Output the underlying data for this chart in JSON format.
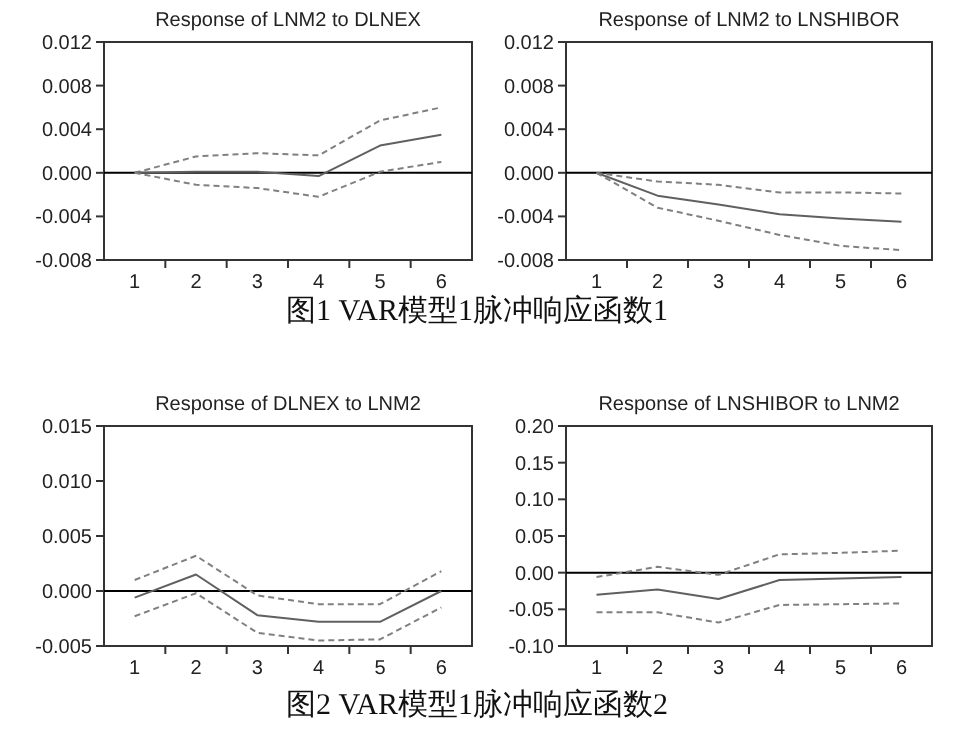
{
  "chart_data": [
    {
      "type": "line",
      "title": "Response of LNM2 to DLNEX",
      "categories": [
        "1",
        "2",
        "3",
        "4",
        "5",
        "6"
      ],
      "ylim": [
        -0.008,
        0.012
      ],
      "yticks": [
        -0.008,
        -0.004,
        {
          "value": 0,
          "label": "0.000"
        },
        0.004,
        0.008,
        0.012
      ],
      "ref_lines": [
        {
          "axis": "y",
          "value": 0,
          "color": "#000000"
        }
      ],
      "annotations": [
        "图1  VAR模型1脉冲响应函数1"
      ],
      "series": [
        {
          "color": "#808080",
          "line_style": "dashed",
          "values": [
            0,
            0.0015,
            0.0018,
            0.0016,
            0.0048,
            0.006
          ]
        },
        {
          "color": "#606060",
          "line_style": "solid",
          "values": [
            0,
            0.0001,
            0.0001,
            -0.0003,
            0.0025,
            0.0035
          ]
        },
        {
          "color": "#808080",
          "line_style": "dashed",
          "values": [
            0,
            -0.0011,
            -0.0014,
            -0.0022,
            0.0001,
            0.001
          ]
        }
      ]
    },
    {
      "type": "line",
      "title": "Response of LNM2 to LNSHIBOR",
      "categories": [
        "1",
        "2",
        "3",
        "4",
        "5",
        "6"
      ],
      "ylim": [
        -0.008,
        0.012
      ],
      "yticks": [
        -0.008,
        -0.004,
        {
          "value": 0,
          "label": "0.000"
        },
        0.004,
        0.008,
        0.012
      ],
      "ref_lines": [
        {
          "axis": "y",
          "value": 0,
          "color": "#000000"
        }
      ],
      "series": [
        {
          "color": "#808080",
          "line_style": "dashed",
          "values": [
            0,
            -0.0008,
            -0.0011,
            -0.0018,
            -0.0018,
            -0.0019
          ]
        },
        {
          "color": "#606060",
          "line_style": "solid",
          "values": [
            0,
            -0.0021,
            -0.0029,
            -0.0038,
            -0.0042,
            -0.0045
          ]
        },
        {
          "color": "#808080",
          "line_style": "dashed",
          "values": [
            0,
            -0.0032,
            -0.0044,
            -0.0057,
            -0.0067,
            -0.0071
          ]
        }
      ]
    },
    {
      "type": "line",
      "title": "Response of DLNEX to LNM2",
      "categories": [
        "1",
        "2",
        "3",
        "4",
        "5",
        "6"
      ],
      "ylim": [
        -0.005,
        0.015
      ],
      "yticks": [
        -0.005,
        {
          "value": 0,
          "label": "0.000"
        },
        0.005,
        {
          "value": 0.01,
          "label": "0.010"
        },
        0.015
      ],
      "ref_lines": [
        {
          "axis": "y",
          "value": 0,
          "color": "#000000"
        }
      ],
      "annotations": [
        "图2  VAR模型1脉冲响应函数2"
      ],
      "series": [
        {
          "color": "#808080",
          "line_style": "dashed",
          "values": [
            0.001,
            0.0032,
            -0.0004,
            -0.0012,
            -0.0012,
            0.0018
          ]
        },
        {
          "color": "#606060",
          "line_style": "solid",
          "values": [
            -0.0006,
            0.0015,
            -0.0022,
            -0.0028,
            -0.0028,
            0.0
          ]
        },
        {
          "color": "#808080",
          "line_style": "dashed",
          "values": [
            -0.0023,
            -0.0002,
            -0.0038,
            -0.0045,
            -0.0044,
            -0.0015
          ]
        }
      ]
    },
    {
      "type": "line",
      "title": "Response of LNSHIBOR to LNM2",
      "categories": [
        "1",
        "2",
        "3",
        "4",
        "5",
        "6"
      ],
      "ylim": [
        -0.1,
        0.2
      ],
      "yticks": [
        {
          "value": -0.1,
          "label": "-0.10"
        },
        -0.05,
        {
          "value": 0,
          "label": "0.00"
        },
        0.05,
        {
          "value": 0.1,
          "label": "0.10"
        },
        0.15,
        {
          "value": 0.2,
          "label": "0.20"
        }
      ],
      "ref_lines": [
        {
          "axis": "y",
          "value": 0,
          "color": "#000000"
        }
      ],
      "series": [
        {
          "color": "#808080",
          "line_style": "dashed",
          "values": [
            -0.006,
            0.008,
            -0.003,
            0.025,
            0.027,
            0.03
          ]
        },
        {
          "color": "#606060",
          "line_style": "solid",
          "values": [
            -0.03,
            -0.023,
            -0.036,
            -0.01,
            -0.008,
            -0.006
          ]
        },
        {
          "color": "#808080",
          "line_style": "dashed",
          "values": [
            -0.054,
            -0.054,
            -0.068,
            -0.044,
            -0.043,
            -0.042
          ]
        }
      ]
    }
  ]
}
